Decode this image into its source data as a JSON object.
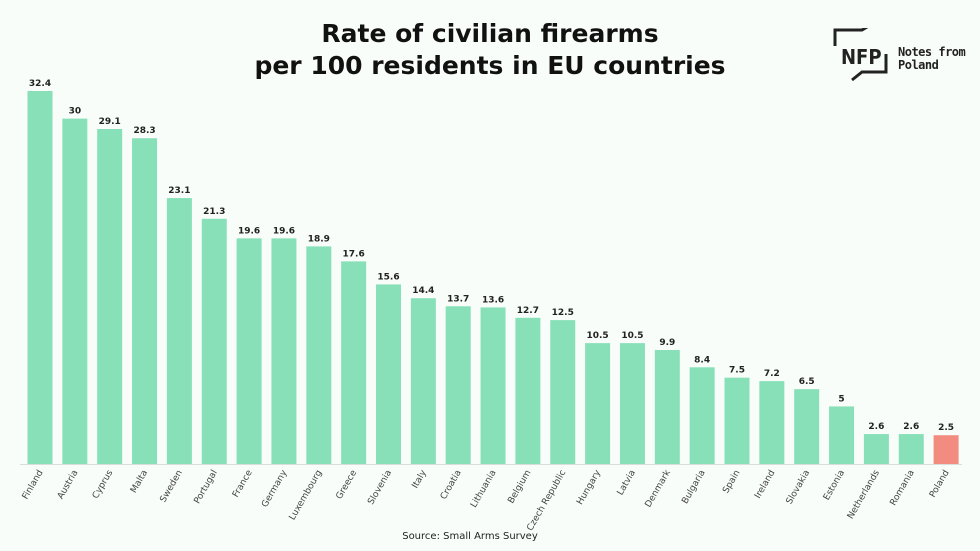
{
  "chart_data": {
    "type": "bar",
    "title_line1": "Rate of civilian firearms",
    "title_line2": "per 100 residents in EU countries",
    "categories": [
      "Finland",
      "Austria",
      "Cyprus",
      "Malta",
      "Sweden",
      "Portugal",
      "France",
      "Germany",
      "Luxembourg",
      "Greece",
      "Slovenia",
      "Italy",
      "Croatia",
      "Lithuania",
      "Belgium",
      "Czech Republic",
      "Hungary",
      "Latvia",
      "Denmark",
      "Bulgaria",
      "Spain",
      "Ireland",
      "Slovakia",
      "Estonia",
      "Netherlands",
      "Romania",
      "Poland"
    ],
    "values": [
      32.4,
      30,
      29.1,
      28.3,
      23.1,
      21.3,
      19.6,
      19.6,
      18.9,
      17.6,
      15.6,
      14.4,
      13.7,
      13.6,
      12.7,
      12.5,
      10.5,
      10.5,
      9.9,
      8.4,
      7.5,
      7.2,
      6.5,
      5,
      2.6,
      2.6,
      2.5
    ],
    "value_labels": [
      "32.4",
      "30",
      "29.1",
      "28.3",
      "23.1",
      "21.3",
      "19.6",
      "19.6",
      "18.9",
      "17.6",
      "15.6",
      "14.4",
      "13.7",
      "13.6",
      "12.7",
      "12.5",
      "10.5",
      "10.5",
      "9.9",
      "8.4",
      "7.5",
      "7.2",
      "6.5",
      "5",
      "2.6",
      "2.6",
      "2.5"
    ],
    "highlight": "Poland",
    "ylim": [
      0,
      32.4
    ],
    "xlabel": "",
    "ylabel": "",
    "grid": false,
    "colors": {
      "bar": "#87e0b8",
      "highlight": "#f28c80"
    }
  },
  "source": "Source: Small Arms Survey",
  "logo": {
    "mark": "NFP",
    "line1": "Notes from",
    "line2": "Poland"
  }
}
